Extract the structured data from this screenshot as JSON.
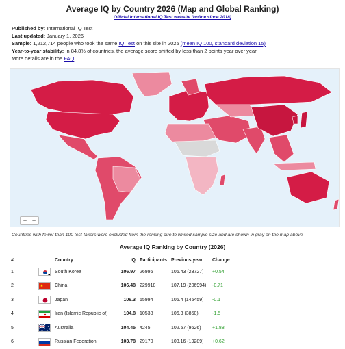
{
  "header": {
    "title": "Average IQ by Country 2026 (Map and Global Ranking)",
    "subtitle_link": "Official International IQ Test website (online since 2018)"
  },
  "meta": {
    "published_label": "Published by:",
    "published_value": "International IQ Test",
    "updated_label": "Last updated:",
    "updated_value": "January 1, 2026",
    "sample_label": "Sample:",
    "sample_text_1": "1,212,714 people who took the same",
    "sample_link_1": "IQ Test",
    "sample_text_2": "on this site in 2025",
    "sample_link_2": "(mean IQ  100, standard deviation  15)",
    "stability_label": "Year-to-year stability:",
    "stability_value": "In 84.8% of countries, the average score shifted by less than 2 points year over year",
    "details_text": "More details are in the",
    "details_link": "FAQ"
  },
  "map": {
    "zoom_in": "+",
    "zoom_out": "−",
    "colors": {
      "ocean": "#e5f1fa",
      "high": "#d41c46",
      "mid": "#e04a6a",
      "low": "#ec8a9f",
      "lower": "#f3b6c3",
      "nodata": "#d9d9d9"
    }
  },
  "note": "Countries with fewer than 100 test-takers were excluded from the ranking due to limited sample size and are shown in gray on the map above",
  "ranking": {
    "title": "Average IQ Ranking by Country (2026)",
    "headers": {
      "rank": "#",
      "country": "Country",
      "iq": "IQ",
      "participants": "Participants",
      "previous": "Previous year",
      "change": "Change"
    },
    "rows": [
      {
        "rank": "1",
        "flag": "south-korea",
        "country": "South Korea",
        "iq": "106.97",
        "participants": "26996",
        "previous": "106.43 (23727)",
        "change": "+0.54"
      },
      {
        "rank": "2",
        "flag": "china",
        "country": "China",
        "iq": "106.48",
        "participants": "229918",
        "previous": "107.19 (206994)",
        "change": "-0.71"
      },
      {
        "rank": "3",
        "flag": "japan",
        "country": "Japan",
        "iq": "106.3",
        "participants": "55994",
        "previous": "106.4 (145459)",
        "change": "-0.1"
      },
      {
        "rank": "4",
        "flag": "iran",
        "country": "Iran (Islamic Republic of)",
        "iq": "104.8",
        "participants": "10538",
        "previous": "106.3 (3850)",
        "change": "-1.5"
      },
      {
        "rank": "5",
        "flag": "australia",
        "country": "Australia",
        "iq": "104.45",
        "participants": "4245",
        "previous": "102.57 (9626)",
        "change": "+1.88"
      },
      {
        "rank": "6",
        "flag": "russia",
        "country": "Russian Federation",
        "iq": "103.78",
        "participants": "29170",
        "previous": "103.16 (19289)",
        "change": "+0.62"
      }
    ]
  }
}
